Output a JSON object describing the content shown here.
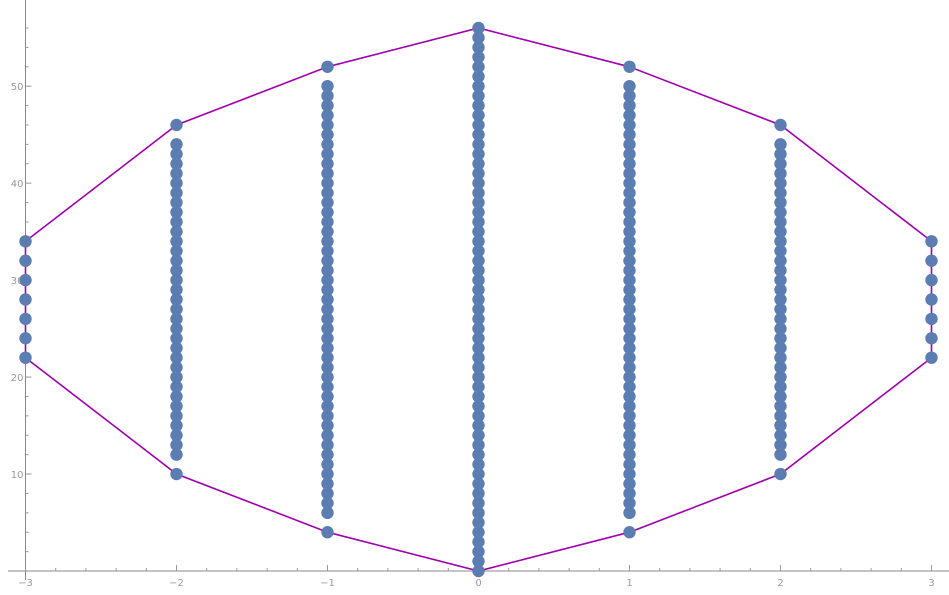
{
  "chart_data": {
    "type": "scatter",
    "title": "",
    "xlabel": "",
    "ylabel": "",
    "xlim": [
      -3,
      3
    ],
    "ylim": [
      0,
      56
    ],
    "x_ticks": [
      -3,
      -2,
      -1,
      0,
      1,
      2,
      3
    ],
    "x_tick_labels": [
      "−3",
      "−2",
      "−1",
      "0",
      "1",
      "2",
      "3"
    ],
    "y_ticks": [
      10,
      20,
      30,
      40,
      50
    ],
    "y_tick_labels": [
      "10",
      "20",
      "30",
      "40",
      "50"
    ],
    "grid": false,
    "point_color": "#5b7db1",
    "hull_color": "#a000b0",
    "columns": [
      {
        "x": -3,
        "y": [
          22,
          24,
          26,
          28,
          30,
          32,
          34
        ]
      },
      {
        "x": -2,
        "y": [
          10,
          12,
          13,
          14,
          15,
          16,
          17,
          18,
          19,
          20,
          21,
          22,
          23,
          24,
          25,
          26,
          27,
          28,
          29,
          30,
          31,
          32,
          33,
          34,
          35,
          36,
          37,
          38,
          39,
          40,
          41,
          42,
          43,
          44,
          46
        ]
      },
      {
        "x": -1,
        "y": [
          4,
          6,
          7,
          8,
          9,
          10,
          11,
          12,
          13,
          14,
          15,
          16,
          17,
          18,
          19,
          20,
          21,
          22,
          23,
          24,
          25,
          26,
          27,
          28,
          29,
          30,
          31,
          32,
          33,
          34,
          35,
          36,
          37,
          38,
          39,
          40,
          41,
          42,
          43,
          44,
          45,
          46,
          47,
          48,
          49,
          50,
          52
        ]
      },
      {
        "x": 0,
        "y": [
          0,
          1,
          2,
          3,
          4,
          5,
          6,
          7,
          8,
          9,
          10,
          11,
          12,
          13,
          14,
          15,
          16,
          17,
          18,
          19,
          20,
          21,
          22,
          23,
          24,
          25,
          26,
          27,
          28,
          29,
          30,
          31,
          32,
          33,
          34,
          35,
          36,
          37,
          38,
          39,
          40,
          41,
          42,
          43,
          44,
          45,
          46,
          47,
          48,
          49,
          50,
          51,
          52,
          53,
          54,
          55,
          56
        ]
      },
      {
        "x": 1,
        "y": [
          4,
          6,
          7,
          8,
          9,
          10,
          11,
          12,
          13,
          14,
          15,
          16,
          17,
          18,
          19,
          20,
          21,
          22,
          23,
          24,
          25,
          26,
          27,
          28,
          29,
          30,
          31,
          32,
          33,
          34,
          35,
          36,
          37,
          38,
          39,
          40,
          41,
          42,
          43,
          44,
          45,
          46,
          47,
          48,
          49,
          50,
          52
        ]
      },
      {
        "x": 2,
        "y": [
          10,
          12,
          13,
          14,
          15,
          16,
          17,
          18,
          19,
          20,
          21,
          22,
          23,
          24,
          25,
          26,
          27,
          28,
          29,
          30,
          31,
          32,
          33,
          34,
          35,
          36,
          37,
          38,
          39,
          40,
          41,
          42,
          43,
          44,
          46
        ]
      },
      {
        "x": 3,
        "y": [
          22,
          24,
          26,
          28,
          30,
          32,
          34
        ]
      }
    ],
    "hull": [
      [
        -3,
        22
      ],
      [
        -2,
        10
      ],
      [
        -1,
        4
      ],
      [
        0,
        0
      ],
      [
        1,
        4
      ],
      [
        2,
        10
      ],
      [
        3,
        22
      ],
      [
        3,
        34
      ],
      [
        2,
        46
      ],
      [
        1,
        52
      ],
      [
        0,
        56
      ],
      [
        -1,
        52
      ],
      [
        -2,
        46
      ],
      [
        -3,
        34
      ],
      [
        -3,
        22
      ]
    ]
  }
}
